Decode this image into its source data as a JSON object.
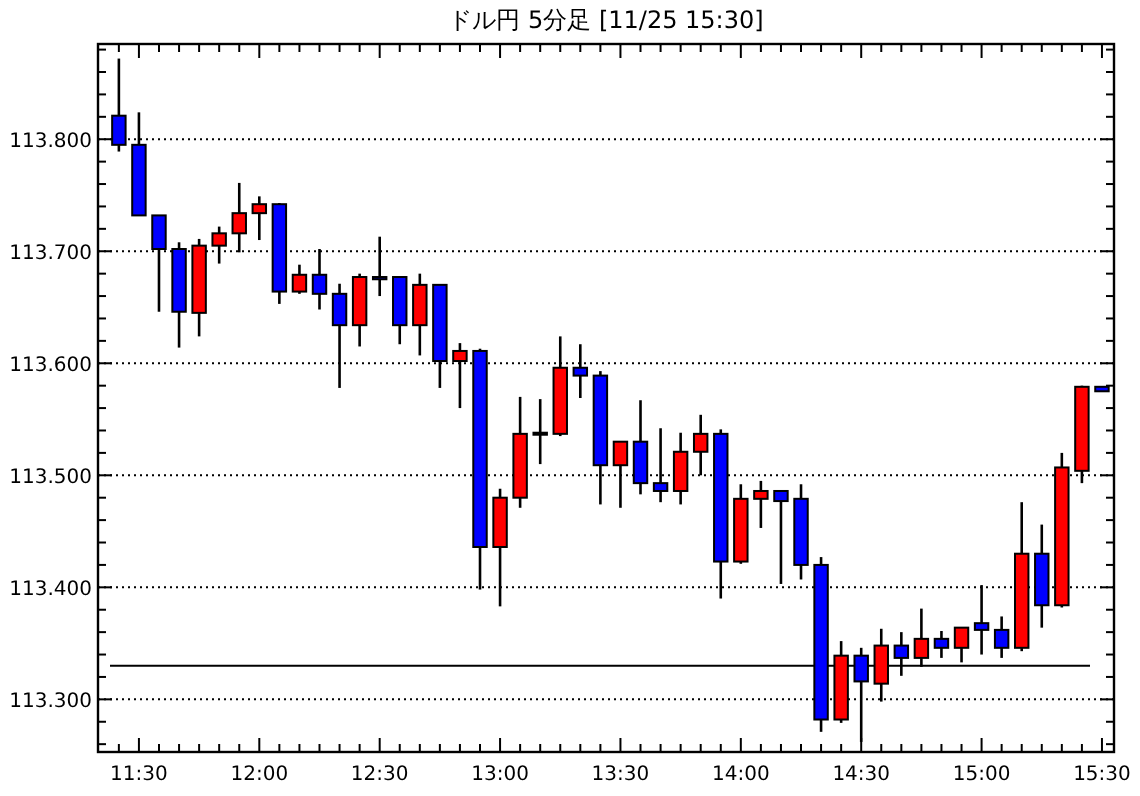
{
  "chart_data": {
    "type": "candlestick",
    "title": "ドル円 5分足 [11/25 15:30]",
    "x": [
      11.4167,
      11.5,
      11.5833,
      11.6667,
      11.75,
      11.8333,
      11.9167,
      12,
      12.0833,
      12.1667,
      12.25,
      12.3333,
      12.4167,
      12.5,
      12.5833,
      12.6667,
      12.75,
      12.8333,
      12.9167,
      13,
      13.0833,
      13.1667,
      13.25,
      13.3333,
      13.4167,
      13.5,
      13.5833,
      13.6667,
      13.75,
      13.8333,
      13.9167,
      14,
      14.0833,
      14.1667,
      14.25,
      14.3333,
      14.4167,
      14.5,
      14.5833,
      14.6667,
      14.75,
      14.8333,
      14.9167,
      15,
      15.0833,
      15.1667,
      15.25,
      15.3333,
      15.4167,
      15.5
    ],
    "ohlc": [
      [
        113.821,
        113.872,
        113.789,
        113.795
      ],
      [
        113.795,
        113.824,
        113.732,
        113.732
      ],
      [
        113.732,
        113.732,
        113.646,
        113.702
      ],
      [
        113.702,
        113.708,
        113.614,
        113.646
      ],
      [
        113.645,
        113.711,
        113.624,
        113.705
      ],
      [
        113.705,
        113.722,
        113.689,
        113.716
      ],
      [
        113.716,
        113.761,
        113.699,
        113.734
      ],
      [
        113.734,
        113.749,
        113.71,
        113.742
      ],
      [
        113.742,
        113.743,
        113.653,
        113.664
      ],
      [
        113.664,
        113.688,
        113.662,
        113.679
      ],
      [
        113.679,
        113.702,
        113.648,
        113.662
      ],
      [
        113.662,
        113.671,
        113.578,
        113.634
      ],
      [
        113.634,
        113.68,
        113.615,
        113.677
      ],
      [
        113.677,
        113.713,
        113.66,
        113.675
      ],
      [
        113.677,
        113.677,
        113.617,
        113.634
      ],
      [
        113.634,
        113.68,
        113.607,
        113.67
      ],
      [
        113.67,
        113.67,
        113.578,
        113.602
      ],
      [
        113.602,
        113.618,
        113.56,
        113.611
      ],
      [
        113.611,
        113.613,
        113.398,
        113.436
      ],
      [
        113.436,
        113.488,
        113.383,
        113.48
      ],
      [
        113.48,
        113.57,
        113.471,
        113.537
      ],
      [
        113.537,
        113.568,
        113.51,
        113.538
      ],
      [
        113.537,
        113.624,
        113.535,
        113.596
      ],
      [
        113.596,
        113.617,
        113.569,
        113.589
      ],
      [
        113.589,
        113.593,
        113.474,
        113.509
      ],
      [
        113.509,
        113.53,
        113.471,
        113.53
      ],
      [
        113.53,
        113.567,
        113.483,
        113.493
      ],
      [
        113.493,
        113.542,
        113.476,
        113.486
      ],
      [
        113.486,
        113.538,
        113.474,
        113.521
      ],
      [
        113.521,
        113.554,
        113.5,
        113.537
      ],
      [
        113.537,
        113.541,
        113.39,
        113.423
      ],
      [
        113.423,
        113.492,
        113.421,
        113.479
      ],
      [
        113.479,
        113.495,
        113.453,
        113.486
      ],
      [
        113.486,
        113.486,
        113.403,
        113.477
      ],
      [
        113.479,
        113.492,
        113.407,
        113.42
      ],
      [
        113.42,
        113.427,
        113.271,
        113.282
      ],
      [
        113.282,
        113.352,
        113.279,
        113.339
      ],
      [
        113.339,
        113.346,
        113.262,
        113.316
      ],
      [
        113.314,
        113.363,
        113.298,
        113.348
      ],
      [
        113.348,
        113.36,
        113.321,
        113.337
      ],
      [
        113.337,
        113.381,
        113.329,
        113.354
      ],
      [
        113.354,
        113.361,
        113.337,
        113.346
      ],
      [
        113.346,
        113.364,
        113.333,
        113.364
      ],
      [
        113.368,
        113.402,
        113.34,
        113.362
      ],
      [
        113.362,
        113.374,
        113.337,
        113.346
      ],
      [
        113.346,
        113.476,
        113.343,
        113.43
      ],
      [
        113.43,
        113.456,
        113.364,
        113.384
      ],
      [
        113.384,
        113.52,
        113.382,
        113.507
      ],
      [
        113.504,
        113.58,
        113.493,
        113.579
      ],
      [
        113.579,
        113.579,
        113.575,
        113.575
      ]
    ],
    "colors": [
      "#0000ff",
      "#0000ff",
      "#0000ff",
      "#0000ff",
      "#ff0000",
      "#ff0000",
      "#ff0000",
      "#ff0000",
      "#0000ff",
      "#ff0000",
      "#0000ff",
      "#0000ff",
      "#ff0000",
      "#0000ff",
      "#0000ff",
      "#ff0000",
      "#0000ff",
      "#ff0000",
      "#0000ff",
      "#ff0000",
      "#ff0000",
      "#ff0000",
      "#ff0000",
      "#0000ff",
      "#0000ff",
      "#ff0000",
      "#0000ff",
      "#0000ff",
      "#ff0000",
      "#ff0000",
      "#0000ff",
      "#ff0000",
      "#ff0000",
      "#0000ff",
      "#0000ff",
      "#0000ff",
      "#ff0000",
      "#0000ff",
      "#ff0000",
      "#0000ff",
      "#ff0000",
      "#0000ff",
      "#ff0000",
      "#0000ff",
      "#0000ff",
      "#ff0000",
      "#0000ff",
      "#ff0000",
      "#ff0000",
      "#0000ff"
    ],
    "xlim": [
      11.33,
      15.55
    ],
    "ylim": [
      113.253,
      113.885
    ],
    "xticks": [
      {
        "value": 11.4167,
        "label": null
      },
      {
        "value": 11.5,
        "label": "11:30"
      },
      {
        "value": 11.5833,
        "label": null
      },
      {
        "value": 11.6667,
        "label": null
      },
      {
        "value": 11.75,
        "label": null
      },
      {
        "value": 11.8333,
        "label": null
      },
      {
        "value": 11.9167,
        "label": null
      },
      {
        "value": 12,
        "label": "12:00"
      },
      {
        "value": 12.0833,
        "label": null
      },
      {
        "value": 12.1667,
        "label": null
      },
      {
        "value": 12.25,
        "label": null
      },
      {
        "value": 12.3333,
        "label": null
      },
      {
        "value": 12.4167,
        "label": null
      },
      {
        "value": 12.5,
        "label": "12:30"
      },
      {
        "value": 12.5833,
        "label": null
      },
      {
        "value": 12.6667,
        "label": null
      },
      {
        "value": 12.75,
        "label": null
      },
      {
        "value": 12.8333,
        "label": null
      },
      {
        "value": 12.9167,
        "label": null
      },
      {
        "value": 13,
        "label": "13:00"
      },
      {
        "value": 13.0833,
        "label": null
      },
      {
        "value": 13.1667,
        "label": null
      },
      {
        "value": 13.25,
        "label": null
      },
      {
        "value": 13.3333,
        "label": null
      },
      {
        "value": 13.4167,
        "label": null
      },
      {
        "value": 13.5,
        "label": "13:30"
      },
      {
        "value": 13.5833,
        "label": null
      },
      {
        "value": 13.6667,
        "label": null
      },
      {
        "value": 13.75,
        "label": null
      },
      {
        "value": 13.8333,
        "label": null
      },
      {
        "value": 13.9167,
        "label": null
      },
      {
        "value": 14,
        "label": "14:00"
      },
      {
        "value": 14.0833,
        "label": null
      },
      {
        "value": 14.1667,
        "label": null
      },
      {
        "value": 14.25,
        "label": null
      },
      {
        "value": 14.3333,
        "label": null
      },
      {
        "value": 14.4167,
        "label": null
      },
      {
        "value": 14.5,
        "label": "14:30"
      },
      {
        "value": 14.5833,
        "label": null
      },
      {
        "value": 14.6667,
        "label": null
      },
      {
        "value": 14.75,
        "label": null
      },
      {
        "value": 14.8333,
        "label": null
      },
      {
        "value": 14.9167,
        "label": null
      },
      {
        "value": 15,
        "label": "15:00"
      },
      {
        "value": 15.0833,
        "label": null
      },
      {
        "value": 15.1667,
        "label": null
      },
      {
        "value": 15.25,
        "label": null
      },
      {
        "value": 15.3333,
        "label": null
      },
      {
        "value": 15.4167,
        "label": null
      },
      {
        "value": 15.5,
        "label": "15:30"
      }
    ],
    "yticks": [
      {
        "value": 113.26,
        "label": null
      },
      {
        "value": 113.28,
        "label": null
      },
      {
        "value": 113.3,
        "label": "113.300"
      },
      {
        "value": 113.32,
        "label": null
      },
      {
        "value": 113.34,
        "label": null
      },
      {
        "value": 113.36,
        "label": null
      },
      {
        "value": 113.38,
        "label": null
      },
      {
        "value": 113.4,
        "label": "113.400"
      },
      {
        "value": 113.42,
        "label": null
      },
      {
        "value": 113.44,
        "label": null
      },
      {
        "value": 113.46,
        "label": null
      },
      {
        "value": 113.48,
        "label": null
      },
      {
        "value": 113.5,
        "label": "113.500"
      },
      {
        "value": 113.52,
        "label": null
      },
      {
        "value": 113.54,
        "label": null
      },
      {
        "value": 113.56,
        "label": null
      },
      {
        "value": 113.58,
        "label": null
      },
      {
        "value": 113.6,
        "label": "113.600"
      },
      {
        "value": 113.62,
        "label": null
      },
      {
        "value": 113.64,
        "label": null
      },
      {
        "value": 113.66,
        "label": null
      },
      {
        "value": 113.68,
        "label": null
      },
      {
        "value": 113.7,
        "label": "113.700"
      },
      {
        "value": 113.72,
        "label": null
      },
      {
        "value": 113.74,
        "label": null
      },
      {
        "value": 113.76,
        "label": null
      },
      {
        "value": 113.78,
        "label": null
      },
      {
        "value": 113.8,
        "label": "113.800"
      },
      {
        "value": 113.82,
        "label": null
      },
      {
        "value": 113.84,
        "label": null
      },
      {
        "value": 113.86,
        "label": null
      },
      {
        "value": 113.88,
        "label": null
      }
    ],
    "grid": "y",
    "ref_lines": [
      {
        "axis": "y",
        "value": 113.33,
        "color": "#000000",
        "line_style": "solid"
      }
    ]
  }
}
